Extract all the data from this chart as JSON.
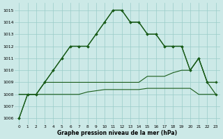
{
  "background_color": "#cce9e7",
  "grid_color": "#99ccc8",
  "line_color": "#1a5c1a",
  "title": "Graphe pression niveau de la mer (hPa)",
  "xlim": [
    -0.5,
    23.5
  ],
  "ylim": [
    1005.5,
    1015.6
  ],
  "yticks": [
    1006,
    1007,
    1008,
    1009,
    1010,
    1011,
    1012,
    1013,
    1014,
    1015
  ],
  "xticks": [
    0,
    1,
    2,
    3,
    4,
    5,
    6,
    7,
    8,
    9,
    10,
    11,
    12,
    13,
    14,
    15,
    16,
    17,
    18,
    19,
    20,
    21,
    22,
    23
  ],
  "x": [
    0,
    1,
    2,
    3,
    4,
    5,
    6,
    7,
    8,
    9,
    10,
    11,
    12,
    13,
    14,
    15,
    16,
    17,
    18,
    19,
    20,
    21,
    22,
    23
  ],
  "line1": [
    1006,
    1008,
    1008,
    1009,
    1010,
    1011,
    1012,
    1012,
    1012,
    1013,
    1014,
    1015,
    1015,
    1014,
    1014,
    1013,
    1013,
    1012,
    1012,
    1012,
    1010,
    1011,
    1009,
    1009
  ],
  "line2": [
    1006,
    1008,
    1008,
    1009,
    1010,
    1011,
    1012,
    1012,
    1012,
    1013,
    1014,
    1015,
    1015,
    1014,
    1014,
    1013,
    1013,
    1012,
    1012,
    1012,
    1010,
    1011,
    1009,
    1008
  ],
  "line3": [
    1008,
    1008,
    1008,
    1009,
    1009,
    1009,
    1009,
    1009,
    1009,
    1009,
    1009,
    1009,
    1009,
    1009,
    1009,
    1009.5,
    1009.5,
    1009.5,
    1009.8,
    1010,
    1010,
    1011,
    1009,
    1009
  ],
  "line4": [
    1008,
    1008,
    1008,
    1008,
    1008,
    1008,
    1008,
    1008,
    1008.2,
    1008.3,
    1008.4,
    1008.4,
    1008.4,
    1008.4,
    1008.4,
    1008.5,
    1008.5,
    1008.5,
    1008.5,
    1008.5,
    1008.5,
    1008,
    1008,
    1008
  ]
}
